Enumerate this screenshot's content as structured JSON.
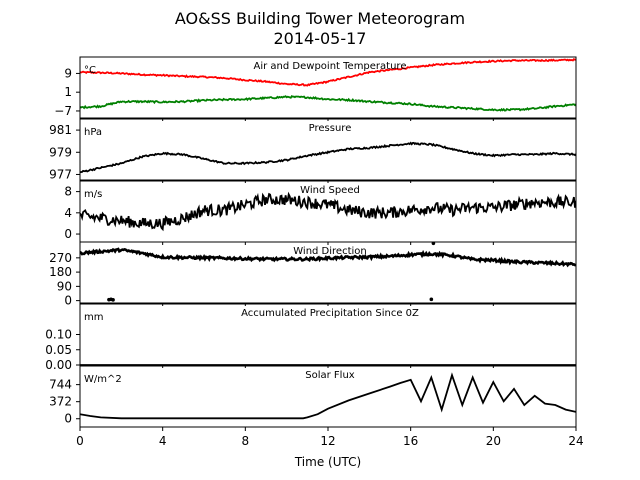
{
  "title": "AO&SS Building Tower Meteorogram",
  "subtitle": "2014-05-17",
  "chart_data": {
    "type": "line",
    "xlabel": "Time (UTC)",
    "x_ticks": [
      "0",
      "4",
      "8",
      "12",
      "16",
      "20",
      "24"
    ],
    "xlim": [
      0,
      24
    ],
    "panels": [
      {
        "title": "Air and Dewpoint Temperature",
        "unit": "°C",
        "ylim": [
          -10,
          16
        ],
        "y_ticks": [
          {
            "value": 9,
            "label": "9"
          },
          {
            "value": 1,
            "label": "1"
          },
          {
            "value": -7,
            "label": "−7"
          }
        ],
        "series": [
          {
            "color": "#ff0000",
            "noise": 0.3,
            "x": [
              0,
              1,
              2,
              3,
              4,
              5,
              6,
              7,
              8,
              9,
              10,
              11,
              12,
              13,
              14,
              15,
              16,
              17,
              18,
              19,
              20,
              21,
              22,
              23,
              24
            ],
            "y": [
              9.5,
              9.3,
              9.0,
              8.5,
              8.2,
              7.8,
              7.5,
              7.0,
              6.2,
              5.5,
              4.5,
              4.0,
              5.5,
              7.5,
              9.5,
              10.5,
              11.5,
              12.5,
              13.2,
              13.8,
              14.2,
              14.5,
              14.5,
              14.6,
              14.8
            ]
          },
          {
            "color": "#008000",
            "noise": 0.35,
            "x": [
              0,
              1,
              2,
              3,
              4,
              5,
              6,
              7,
              8,
              9,
              10,
              11,
              12,
              13,
              14,
              15,
              16,
              17,
              18,
              19,
              20,
              21,
              22,
              23,
              24
            ],
            "y": [
              -5.5,
              -5.0,
              -3.0,
              -3.0,
              -3.2,
              -3.0,
              -2.5,
              -2.2,
              -2.0,
              -1.5,
              -1.0,
              -1.2,
              -2.0,
              -2.3,
              -3.0,
              -3.5,
              -4.0,
              -5.0,
              -5.5,
              -6.0,
              -6.5,
              -6.5,
              -6.0,
              -5.0,
              -4.2
            ]
          }
        ]
      },
      {
        "title": "Pressure",
        "unit": "hPa",
        "ylim": [
          976.5,
          982
        ],
        "y_ticks": [
          {
            "value": 981,
            "label": "981"
          },
          {
            "value": 979,
            "label": "979"
          },
          {
            "value": 977,
            "label": "977"
          }
        ],
        "series": [
          {
            "color": "#000000",
            "noise": 0.07,
            "x": [
              0,
              1,
              2,
              3,
              4,
              5,
              6,
              7,
              8,
              9,
              10,
              11,
              12,
              13,
              14,
              15,
              16,
              17,
              18,
              19,
              20,
              21,
              22,
              23,
              24
            ],
            "y": [
              977.2,
              977.6,
              978.0,
              978.6,
              978.9,
              978.8,
              978.4,
              978.0,
              978.0,
              978.1,
              978.3,
              978.7,
              979.0,
              979.3,
              979.4,
              979.6,
              979.8,
              979.7,
              979.3,
              978.9,
              978.7,
              978.8,
              978.8,
              978.9,
              978.8
            ]
          }
        ]
      },
      {
        "title": "Wind Speed",
        "unit": "m/s",
        "ylim": [
          -1.5,
          10
        ],
        "y_ticks": [
          {
            "value": 8,
            "label": "8"
          },
          {
            "value": 4,
            "label": "4"
          },
          {
            "value": 0,
            "label": "0"
          }
        ],
        "series": [
          {
            "color": "#000000",
            "noise": 1.1,
            "x": [
              0,
              1,
              2,
              3,
              4,
              5,
              6,
              7,
              8,
              9,
              10,
              11,
              12,
              13,
              14,
              15,
              16,
              17,
              18,
              19,
              20,
              21,
              22,
              23,
              24
            ],
            "y": [
              3.5,
              3.0,
              2.5,
              2.0,
              2.0,
              3.0,
              4.5,
              4.5,
              5.5,
              6.5,
              6.5,
              6.0,
              5.5,
              4.5,
              4.0,
              4.0,
              4.5,
              5.0,
              4.5,
              5.0,
              5.0,
              5.5,
              6.0,
              6.0,
              6.0
            ]
          }
        ]
      },
      {
        "title": "Wind Direction",
        "unit": "",
        "ylim": [
          -15,
          370
        ],
        "y_ticks": [
          {
            "value": 270,
            "label": "270"
          },
          {
            "value": 180,
            "label": "180"
          },
          {
            "value": 90,
            "label": "90"
          },
          {
            "value": 0,
            "label": "0"
          }
        ],
        "series": [
          {
            "color": "#000000",
            "noise": 8,
            "x": [
              0,
              1,
              2,
              3,
              4,
              5,
              6,
              7,
              8,
              9,
              10,
              11,
              12,
              13,
              14,
              15,
              16,
              17,
              18,
              19,
              20,
              21,
              22,
              23,
              24
            ],
            "y": [
              300,
              310,
              320,
              300,
              275,
              272,
              270,
              268,
              265,
              262,
              262,
              262,
              268,
              272,
              275,
              280,
              290,
              295,
              285,
              260,
              255,
              245,
              240,
              235,
              228
            ]
          }
        ],
        "points": [
          {
            "x": [
              1.4,
              1.5,
              1.6,
              17.0,
              17.1
            ],
            "y": [
              6,
              8,
              5,
              8,
              362
            ],
            "color": "#000000"
          }
        ]
      },
      {
        "title": "Accumulated Precipitation Since 0Z",
        "unit": "mm",
        "ylim": [
          0,
          0.2
        ],
        "y_ticks": [
          {
            "value": 0.1,
            "label": "0.10"
          },
          {
            "value": 0.05,
            "label": "0.05"
          },
          {
            "value": 0,
            "label": "0.00"
          }
        ],
        "series": [
          {
            "color": "#000000",
            "noise": 0,
            "x": [
              0,
              24
            ],
            "y": [
              0,
              0
            ]
          }
        ]
      },
      {
        "title": "Solar Flux",
        "unit": "W/m^2",
        "ylim": [
          -180,
          1150
        ],
        "y_ticks": [
          {
            "value": 744,
            "label": "744"
          },
          {
            "value": 372,
            "label": "372"
          },
          {
            "value": 0,
            "label": "0"
          }
        ],
        "series": [
          {
            "color": "#000000",
            "noise": 0,
            "x": [
              0,
              0.5,
              1,
              2,
              4,
              6,
              8,
              10,
              10.8,
              11,
              11.5,
              12,
              13,
              14,
              15,
              15.5,
              16,
              16.5,
              17,
              17.5,
              18,
              18.5,
              19,
              19.5,
              20,
              20.5,
              21,
              21.5,
              22,
              22.5,
              23,
              23.5,
              24
            ],
            "y": [
              100,
              60,
              30,
              10,
              10,
              10,
              10,
              10,
              10,
              30,
              100,
              220,
              400,
              550,
              700,
              780,
              850,
              380,
              900,
              200,
              950,
              300,
              900,
              350,
              800,
              380,
              650,
              300,
              500,
              330,
              300,
              200,
              150
            ]
          }
        ]
      }
    ]
  }
}
